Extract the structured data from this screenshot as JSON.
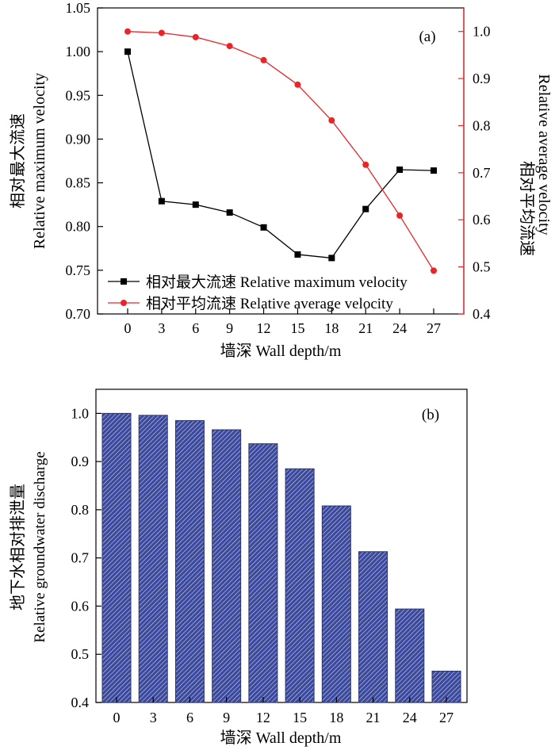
{
  "chart_data": [
    {
      "type": "line",
      "panel_label": "(a)",
      "xlabel": "墙深 Wall depth/m",
      "ylabel_left_cn": "相对最大流速",
      "ylabel_left_en": "Relative maximum velocity",
      "ylabel_right_cn": "相对平均流速",
      "ylabel_right_en": "Relative average velocity",
      "x": [
        0,
        3,
        6,
        9,
        12,
        15,
        18,
        21,
        24,
        27
      ],
      "x_ticks": [
        "0",
        "3",
        "6",
        "9",
        "12",
        "15",
        "18",
        "21",
        "24",
        "27"
      ],
      "ylim_left": [
        0.7,
        1.05
      ],
      "yticks_left": [
        "0.70",
        "0.75",
        "0.80",
        "0.85",
        "0.90",
        "0.95",
        "1.00",
        "1.05"
      ],
      "ylim_right": [
        0.4,
        1.05
      ],
      "yticks_right": [
        "0.4",
        "0.5",
        "0.6",
        "0.7",
        "0.8",
        "0.9",
        "1.0"
      ],
      "series": [
        {
          "name": "相对最大流速 Relative maximum velocity",
          "axis": "left",
          "color": "#000000",
          "marker": "square",
          "values": [
            1.0,
            0.829,
            0.825,
            0.816,
            0.799,
            0.768,
            0.764,
            0.82,
            0.865,
            0.864
          ]
        },
        {
          "name": "相对平均流速 Relative average velocity",
          "axis": "right",
          "color": "#e8262a",
          "marker": "circle",
          "values": [
            1.0,
            0.997,
            0.988,
            0.969,
            0.939,
            0.887,
            0.811,
            0.717,
            0.609,
            0.492
          ]
        }
      ],
      "legend_position": "bottom-right"
    },
    {
      "type": "bar",
      "panel_label": "(b)",
      "xlabel": "墙深 Wall depth/m",
      "ylabel_cn": "地下水相对排泄量",
      "ylabel_en": "Relative groundwater discharge",
      "categories": [
        "0",
        "3",
        "6",
        "9",
        "12",
        "15",
        "18",
        "21",
        "24",
        "27"
      ],
      "values": [
        1.0,
        0.996,
        0.985,
        0.966,
        0.937,
        0.885,
        0.808,
        0.713,
        0.594,
        0.465
      ],
      "ylim": [
        0.4,
        1.05
      ],
      "yticks": [
        "0.4",
        "0.5",
        "0.6",
        "0.7",
        "0.8",
        "0.9",
        "1.0"
      ],
      "bar_color": "#3b4a9c"
    }
  ]
}
